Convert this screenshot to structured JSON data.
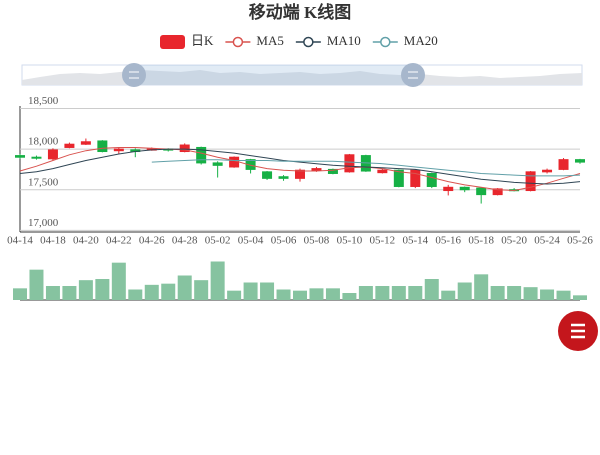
{
  "chart_data": {
    "type": "candlestick",
    "title": "移动端 K线图",
    "categories": [
      "04-14",
      null,
      "04-18",
      null,
      "04-20",
      null,
      "04-22",
      null,
      "04-26",
      null,
      "04-28",
      null,
      "05-02",
      null,
      "05-04",
      null,
      "05-06",
      null,
      "05-08",
      null,
      "05-10",
      null,
      "05-12",
      null,
      "05-14",
      null,
      "05-16",
      null,
      "05-18",
      null,
      "05-20",
      null,
      "05-24",
      null,
      "05-26"
    ],
    "series": [
      {
        "name": "日K",
        "type": "candlestick",
        "color": "#e8262d",
        "color_down": "#16b045",
        "open": [
          17920,
          17900,
          17880,
          18020,
          18060,
          18100,
          17980,
          17990,
          17990,
          18000,
          17970,
          18020,
          17830,
          17780,
          17870,
          17720,
          17660,
          17640,
          17740,
          17750,
          17720,
          17920,
          17710,
          17740,
          17540,
          17700,
          17490,
          17530,
          17520,
          17440,
          17500,
          17490,
          17720,
          17750,
          17870
        ],
        "close": [
          17900,
          17890,
          17990,
          18060,
          18090,
          17970,
          18000,
          17970,
          18000,
          17990,
          18050,
          17830,
          17800,
          17900,
          17750,
          17640,
          17640,
          17740,
          17760,
          17700,
          17930,
          17730,
          17740,
          17540,
          17740,
          17540,
          17530,
          17500,
          17440,
          17510,
          17490,
          17720,
          17740,
          17870,
          17840
        ],
        "low": [
          17880,
          17870,
          17860,
          18010,
          18050,
          17960,
          17940,
          17900,
          17980,
          17970,
          17960,
          17810,
          17650,
          17770,
          17700,
          17620,
          17610,
          17600,
          17720,
          17690,
          17710,
          17720,
          17700,
          17530,
          17520,
          17520,
          17430,
          17470,
          17330,
          17430,
          17480,
          17480,
          17700,
          17740,
          17820
        ],
        "high": [
          17940,
          17920,
          18010,
          18080,
          18130,
          18110,
          18020,
          18010,
          18020,
          18010,
          18070,
          18030,
          17850,
          17910,
          17880,
          17730,
          17680,
          17760,
          17780,
          17760,
          17940,
          17930,
          17760,
          17750,
          17750,
          17710,
          17560,
          17540,
          17530,
          17520,
          17520,
          17730,
          17760,
          17890,
          17880
        ]
      },
      {
        "name": "MA5",
        "type": "line",
        "color": "#d9534f",
        "values": [
          17730,
          17790,
          17860,
          17930,
          17980,
          18010,
          18020,
          18020,
          18010,
          18000,
          17990,
          17950,
          17900,
          17860,
          17800,
          17760,
          17740,
          17730,
          17730,
          17740,
          17770,
          17780,
          17760,
          17720,
          17700,
          17650,
          17600,
          17560,
          17530,
          17500,
          17490,
          17530,
          17580,
          17640,
          17700
        ]
      },
      {
        "name": "MA10",
        "type": "line",
        "color": "#2f4554",
        "values": [
          17700,
          17720,
          17760,
          17810,
          17860,
          17900,
          17940,
          17970,
          17990,
          18000,
          18000,
          17990,
          17970,
          17950,
          17920,
          17890,
          17860,
          17840,
          17820,
          17800,
          17790,
          17780,
          17770,
          17760,
          17750,
          17720,
          17690,
          17660,
          17630,
          17610,
          17590,
          17580,
          17570,
          17580,
          17600
        ]
      },
      {
        "name": "MA20",
        "type": "line",
        "color": "#61a0a8",
        "values": [
          null,
          null,
          null,
          null,
          null,
          null,
          null,
          null,
          17840,
          17850,
          17860,
          17870,
          17870,
          17860,
          17860,
          17860,
          17850,
          17850,
          17850,
          17850,
          17840,
          17830,
          17820,
          17800,
          17780,
          17760,
          17740,
          17720,
          17700,
          17690,
          17680,
          17670,
          17670,
          17670,
          17680
        ]
      }
    ],
    "ylim": [
      16980,
      18530
    ],
    "yticks": [
      {
        "value": 17000,
        "label": "17,000"
      },
      {
        "value": 17500,
        "label": "17,500"
      },
      {
        "value": 18000,
        "label": "18,000"
      },
      {
        "value": 18500,
        "label": "18,500"
      }
    ],
    "grid": true,
    "volume": {
      "color": "#86c3a0",
      "ylim": [
        0,
        36
      ],
      "values": [
        10,
        26,
        12,
        12,
        17,
        18,
        32,
        9,
        13,
        14,
        21,
        17,
        33,
        8,
        15,
        15,
        9,
        8,
        10,
        10,
        6,
        12,
        12,
        12,
        12,
        18,
        8,
        15,
        22,
        12,
        12,
        11,
        9,
        8,
        4
      ]
    }
  }
}
